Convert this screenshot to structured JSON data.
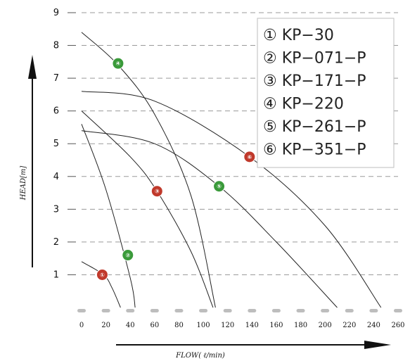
{
  "chart_data": {
    "type": "line",
    "xlabel": "FLOW( ℓ/min)",
    "ylabel": "HEAD[m]",
    "xlim": [
      0,
      260
    ],
    "ylim": [
      0,
      9
    ],
    "x_ticks": [
      "0",
      "20",
      "40",
      "60",
      "80",
      "100",
      "120",
      "140",
      "160",
      "180",
      "200",
      "220",
      "240",
      "260"
    ],
    "y_ticks": [
      "1",
      "2",
      "3",
      "4",
      "5",
      "6",
      "7",
      "8",
      "9"
    ],
    "grid": "horizontal dashed",
    "legend_position": "top-right",
    "legend": [
      "① KP−30",
      "② KP−071−P",
      "③ KP−171−P",
      "④ KP−220",
      "⑤ KP−261−P",
      "⑥ KP−351−P"
    ],
    "series": [
      {
        "name": "① KP−30",
        "x": [
          0,
          18,
          25,
          32
        ],
        "y": [
          1.4,
          1.0,
          0.6,
          0.0
        ]
      },
      {
        "name": "② KP−071−P",
        "x": [
          0,
          20,
          40,
          44
        ],
        "y": [
          5.6,
          3.6,
          0.9,
          0.0
        ]
      },
      {
        "name": "③ KP−171−P",
        "x": [
          0,
          40,
          62,
          90,
          108
        ],
        "y": [
          6.0,
          4.6,
          3.55,
          1.7,
          0.0
        ]
      },
      {
        "name": "④ KP−220",
        "x": [
          0,
          30,
          60,
          90,
          110
        ],
        "y": [
          8.4,
          7.4,
          5.9,
          3.4,
          0.0
        ]
      },
      {
        "name": "⑤ KP−261−P",
        "x": [
          0,
          60,
          113,
          160,
          210
        ],
        "y": [
          5.4,
          5.0,
          3.7,
          2.0,
          0.0
        ]
      },
      {
        "name": "⑥ KP−351−P",
        "x": [
          0,
          60,
          138,
          200,
          246
        ],
        "y": [
          6.6,
          6.3,
          4.6,
          2.5,
          0.0
        ]
      }
    ],
    "markers": [
      {
        "label": "①",
        "x": 17,
        "y": 1.0,
        "color": "#c0392b"
      },
      {
        "label": "②",
        "x": 38,
        "y": 1.6,
        "color": "#3a9a3a"
      },
      {
        "label": "③",
        "x": 62,
        "y": 3.55,
        "color": "#c0392b"
      },
      {
        "label": "④",
        "x": 30,
        "y": 7.45,
        "color": "#3a9a3a"
      },
      {
        "label": "⑤",
        "x": 113,
        "y": 3.7,
        "color": "#3a9a3a"
      },
      {
        "label": "⑥",
        "x": 138,
        "y": 4.6,
        "color": "#c0392b"
      }
    ],
    "colors": {
      "curve": "#222222",
      "grid": "#9a9a9a",
      "red_marker": "#c0392b",
      "green_marker": "#3a9a3a"
    }
  }
}
